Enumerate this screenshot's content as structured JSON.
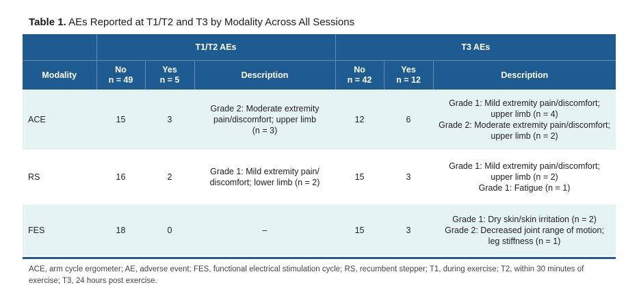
{
  "caption": {
    "label": "Table 1.",
    "text": " AEs Reported at T1/T2 and T3 by Modality Across All Sessions"
  },
  "header": {
    "group_t1t2": "T1/T2 AEs",
    "group_t3": "T3 AEs",
    "modality": "Modality",
    "no": "No",
    "yes": "Yes",
    "description": "Description",
    "t1t2_no_n": "n = 49",
    "t1t2_yes_n": "n = 5",
    "t3_no_n": "n = 42",
    "t3_yes_n": "n = 12"
  },
  "rows": [
    {
      "modality": "ACE",
      "t1t2_no": "15",
      "t1t2_yes": "3",
      "t1t2_desc": [
        "Grade 2: Moderate extremity",
        "pain/discomfort; upper limb",
        "(n = 3)"
      ],
      "t3_no": "12",
      "t3_yes": "6",
      "t3_desc": [
        "Grade 1: Mild extremity pain/discomfort;",
        "upper limb (n = 4)",
        "Grade 2: Moderate extremity pain/discomfort;",
        "upper limb (n = 2)"
      ]
    },
    {
      "modality": "RS",
      "t1t2_no": "16",
      "t1t2_yes": "2",
      "t1t2_desc": [
        "Grade 1: Mild extremity pain/",
        "discomfort; lower limb (n = 2)"
      ],
      "t3_no": "15",
      "t3_yes": "3",
      "t3_desc": [
        "Grade 1: Mild extremity pain/discomfort;",
        "upper limb (n = 2)",
        "Grade 1: Fatigue (n = 1)"
      ]
    },
    {
      "modality": "FES",
      "t1t2_no": "18",
      "t1t2_yes": "0",
      "t1t2_desc": [
        "–"
      ],
      "t3_no": "15",
      "t3_yes": "3",
      "t3_desc": [
        "Grade 1: Dry skin/skin irritation (n = 2)",
        "Grade 2: Decreased joint range of motion;",
        "leg stiffness (n = 1)"
      ]
    }
  ],
  "footnote": "ACE, arm cycle ergometer; AE, adverse event; FES, functional electrical stimulation cycle; RS, recumbent stepper; T1, during exercise; T2, within 30 minutes of exercise; T3, 24 hours post exercise.",
  "colors": {
    "header_bg": "#1e5b90",
    "alt_row_bg": "#e6f3f3"
  }
}
